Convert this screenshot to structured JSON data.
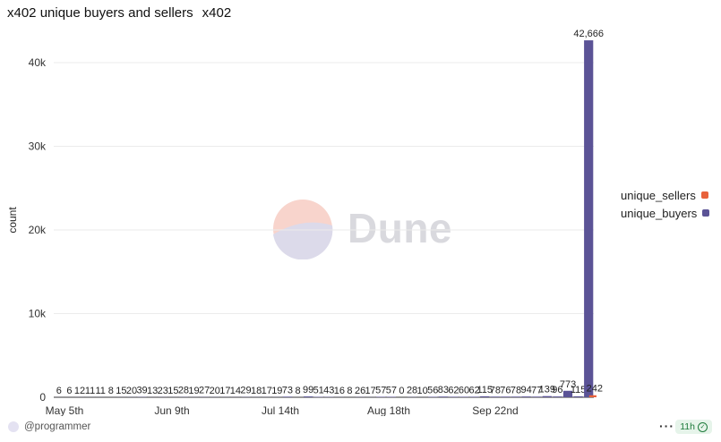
{
  "header": {
    "title": "x402 unique buyers and sellers",
    "subtitle": "x402"
  },
  "colors": {
    "unique_sellers": "#e8613b",
    "unique_buyers": "#5b5396"
  },
  "watermark": {
    "text": "Dune"
  },
  "footer": {
    "username": "@programmer",
    "more_label": "···",
    "badge_label": "11h"
  },
  "chart_data": {
    "type": "bar",
    "ylabel": "count",
    "xlabel": "",
    "ylim": [
      0,
      45000
    ],
    "yticks": [
      "0",
      "10k",
      "20k",
      "30k",
      "40k"
    ],
    "x_tick_labels": [
      "May 5th",
      "Jun 9th",
      "Jul 14th",
      "Aug 18th",
      "Sep 22nd"
    ],
    "legend": [
      "unique_sellers",
      "unique_buyers"
    ],
    "legend_position": "right",
    "series": [
      {
        "name": "unique_buyers",
        "values": [
          6,
          6,
          12,
          11,
          11,
          8,
          15,
          20,
          39,
          13,
          23,
          15,
          28,
          19,
          27,
          20,
          17,
          14,
          29,
          18,
          17,
          19,
          73,
          8,
          99,
          51,
          43,
          16,
          8,
          26,
          17,
          57,
          57,
          0,
          28,
          10,
          56,
          83,
          62,
          60,
          62,
          115,
          78,
          76,
          78,
          94,
          77,
          139,
          96,
          773,
          115,
          42666
        ]
      },
      {
        "name": "unique_sellers",
        "values": [
          0,
          0,
          0,
          0,
          0,
          0,
          0,
          0,
          0,
          0,
          0,
          0,
          0,
          0,
          0,
          0,
          0,
          0,
          0,
          0,
          0,
          0,
          0,
          0,
          0,
          0,
          0,
          0,
          0,
          0,
          0,
          0,
          0,
          0,
          0,
          0,
          0,
          0,
          0,
          0,
          0,
          0,
          0,
          0,
          0,
          0,
          0,
          0,
          0,
          0,
          0,
          242
        ]
      }
    ],
    "data_labels": [
      "6",
      "6",
      "12",
      "11",
      "11",
      "8",
      "15",
      "20",
      "39",
      "13",
      "23",
      "15",
      "28",
      "19",
      "27",
      "20",
      "17",
      "14",
      "29",
      "18",
      "17",
      "19",
      "73",
      "8",
      "99",
      "51",
      "43",
      "16",
      "8",
      "26",
      "17",
      "57",
      "57",
      "0",
      "28",
      "10",
      "56",
      "83",
      "62",
      "60",
      "62",
      "115",
      "78",
      "76",
      "78",
      "94",
      "77",
      "139",
      "96",
      "773",
      "115",
      "42,666"
    ],
    "seller_label": "242"
  }
}
